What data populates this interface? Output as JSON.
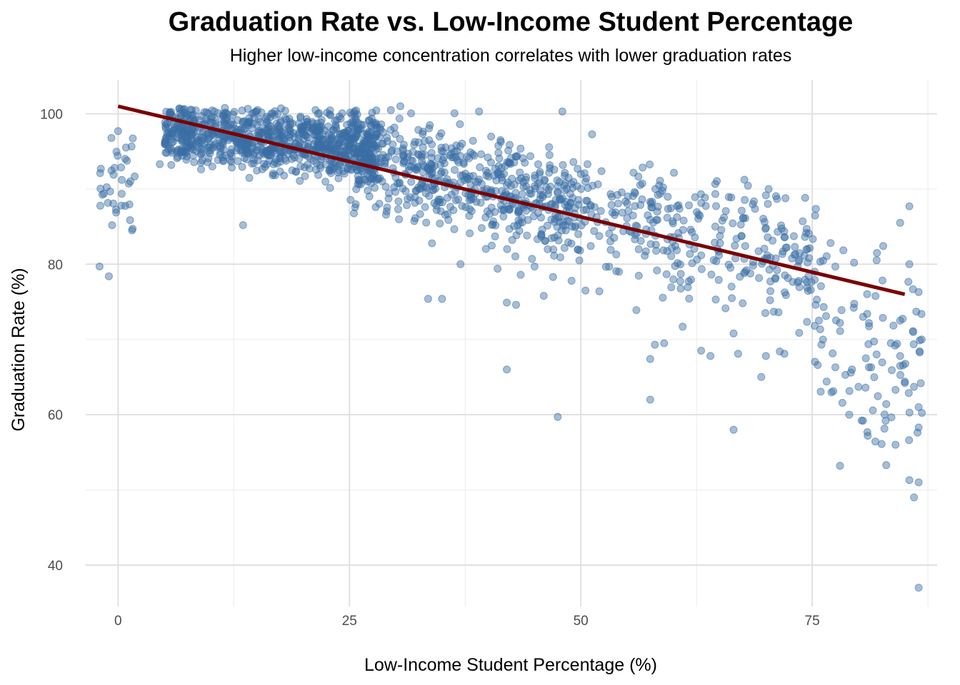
{
  "chart_data": {
    "type": "scatter",
    "title": "Graduation Rate vs. Low-Income Student Percentage",
    "subtitle": "Higher low-income concentration correlates with lower graduation rates",
    "xlabel": "Low-Income Student Percentage (%)",
    "ylabel": "Graduation Rate (%)",
    "xlim": [
      -3.5,
      88.5
    ],
    "ylim": [
      34.5,
      104.5
    ],
    "x_ticks": [
      0,
      25,
      50,
      75
    ],
    "x_tick_labels": [
      "0",
      "25",
      "50",
      "75"
    ],
    "y_ticks": [
      40,
      60,
      80,
      100
    ],
    "y_tick_labels": [
      "40",
      "60",
      "80",
      "100"
    ],
    "grid": true,
    "point_color": "#3a6ea5",
    "point_opacity": 0.45,
    "trend_line": {
      "color": "#7a0000",
      "x": [
        0,
        85
      ],
      "y": [
        101,
        76
      ]
    },
    "clusters": [
      {
        "x_range": [
          5,
          28
        ],
        "y_center_at_start": 97.5,
        "y_center_at_end": 95.5,
        "y_spread": 2.5,
        "count": 900
      },
      {
        "x_range": [
          25,
          50
        ],
        "y_center_at_start": 94.5,
        "y_center_at_end": 87.5,
        "y_spread": 4.0,
        "count": 600
      },
      {
        "x_range": [
          50,
          75
        ],
        "y_center_at_start": 88,
        "y_center_at_end": 80,
        "y_spread": 5.5,
        "count": 300
      },
      {
        "x_range": [
          75,
          87
        ],
        "y_center_at_start": 74,
        "y_center_at_end": 66,
        "y_spread": 8.0,
        "count": 90
      },
      {
        "x_range": [
          -2,
          2
        ],
        "y_center_at_start": 91,
        "y_center_at_end": 91,
        "y_spread": 4.5,
        "count": 35
      }
    ],
    "points": [
      [
        -2,
        79.7
      ],
      [
        -1,
        78.4
      ],
      [
        0,
        97.7
      ],
      [
        1.5,
        84.5
      ],
      [
        42,
        66
      ],
      [
        47.5,
        59.7
      ],
      [
        57.5,
        62
      ],
      [
        66.5,
        58
      ],
      [
        69.5,
        65
      ],
      [
        86.5,
        37
      ],
      [
        86,
        49
      ],
      [
        86.5,
        51
      ],
      [
        85.5,
        51.3
      ],
      [
        78,
        53.2
      ],
      [
        83,
        53.3
      ],
      [
        81,
        57.2
      ],
      [
        84,
        56
      ],
      [
        86.5,
        58.3
      ],
      [
        86,
        63.7
      ],
      [
        86.5,
        61
      ],
      [
        85.5,
        80
      ],
      [
        86.5,
        76.3
      ],
      [
        85.5,
        87.7
      ],
      [
        84.5,
        85.5
      ],
      [
        82,
        81.5
      ],
      [
        48,
        100.3
      ],
      [
        30.5,
        101
      ],
      [
        39,
        100.3
      ],
      [
        4.5,
        93.3
      ],
      [
        13.5,
        85.2
      ],
      [
        33.5,
        75.4
      ],
      [
        35,
        75.4
      ],
      [
        37,
        80
      ],
      [
        45,
        79.7
      ],
      [
        46,
        75.8
      ],
      [
        47,
        78.3
      ],
      [
        43,
        74.6
      ],
      [
        41,
        79.4
      ],
      [
        42,
        74.9
      ],
      [
        43.5,
        78.6
      ],
      [
        49,
        77.8
      ],
      [
        50.5,
        76.5
      ],
      [
        52,
        76.4
      ],
      [
        56,
        73.9
      ],
      [
        58,
        69.3
      ],
      [
        57.5,
        67.4
      ],
      [
        59,
        69.5
      ],
      [
        61,
        71.7
      ],
      [
        63,
        68.5
      ],
      [
        64,
        67.8
      ],
      [
        66.5,
        70.8
      ],
      [
        67,
        68.1
      ],
      [
        70,
        67.8
      ],
      [
        71.5,
        68.4
      ],
      [
        72,
        68.1
      ],
      [
        76,
        69.3
      ],
      [
        77.5,
        66.3
      ],
      [
        79,
        60
      ],
      [
        80.5,
        59.2
      ],
      [
        82.5,
        56.1
      ],
      [
        80,
        63.7
      ],
      [
        83,
        61.4
      ],
      [
        84,
        63.3
      ],
      [
        85,
        64.4
      ],
      [
        84.5,
        67.8
      ],
      [
        83.5,
        69.5
      ],
      [
        84.5,
        72.5
      ],
      [
        80.5,
        73
      ],
      [
        78,
        72.2
      ],
      [
        76.5,
        73.1
      ],
      [
        75.5,
        75.3
      ]
    ]
  }
}
